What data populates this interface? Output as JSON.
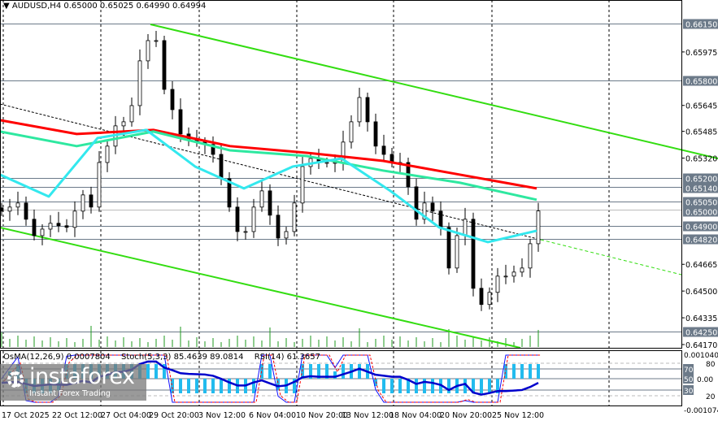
{
  "header": {
    "symbol": "AUDUSD,H4",
    "open": "0.65000",
    "high": "0.65025",
    "low": "0.64990",
    "close": "0.64994"
  },
  "indicators": {
    "osma": "OsMA(12,26,9) 0.0007804",
    "stoch": "Stoch(5,3,3) 85.4639 89.0814",
    "rsi": "RSI(14) 61.3657"
  },
  "watermark": {
    "brand": "instaforex",
    "tagline": "Instant Forex Trading"
  },
  "colors": {
    "ma_slow": "#ff0000",
    "ma_mid": "#2ee8a0",
    "ma_fast": "#33e8ee",
    "channel": "#33dd11",
    "volume": "#1c9a1c",
    "osma": "#22bbee",
    "stoch_main": "#1010ff",
    "stoch_signal": "#ff0000",
    "rsi": "#0000cc",
    "level_box": "#6c7a89"
  },
  "chart_data": {
    "type": "candlestick",
    "symbol": "AUDUSD",
    "timeframe": "H4",
    "ylim": [
      0.6417,
      0.6615
    ],
    "x_tick_labels": [
      "17 Oct 2025",
      "22 Oct 12:00",
      "27 Oct 04:00",
      "29 Oct 20:00",
      "3 Nov 12:00",
      "6 Nov 04:00",
      "10 Nov 20:00",
      "13 Nov 12:00",
      "18 Nov 04:00",
      "20 Nov 20:00",
      "25 Nov 12:00"
    ],
    "y_tick_labels": [
      "0.65975",
      "0.65645",
      "0.65485",
      "0.65320",
      "0.64665",
      "0.64500",
      "0.64335",
      "0.64170"
    ],
    "levels": [
      "0.66150",
      "0.65800",
      "0.65200",
      "0.65140",
      "0.65050",
      "0.65000",
      "0.64900",
      "0.64820",
      "0.64250"
    ],
    "closes": [
      0.64993,
      0.65018,
      0.65043,
      0.64943,
      0.64842,
      0.64882,
      0.64918,
      0.64903,
      0.64893,
      0.64993,
      0.65093,
      0.65018,
      0.65293,
      0.65394,
      0.65519,
      0.65544,
      0.65644,
      0.6592,
      0.66045,
      0.66045,
      0.65744,
      0.65619,
      0.65469,
      0.65434,
      0.65419,
      0.65404,
      0.65343,
      0.65193,
      0.65018,
      0.64867,
      0.64867,
      0.65018,
      0.65118,
      0.64968,
      0.64827,
      0.64867,
      0.65043,
      0.65268,
      0.65318,
      0.65293,
      0.65293,
      0.65293,
      0.65419,
      0.65544,
      0.65694,
      0.65544,
      0.65394,
      0.65343,
      0.65293,
      0.65293,
      0.65143,
      0.64943,
      0.65043,
      0.64993,
      0.64893,
      0.64642,
      0.64842,
      0.64943,
      0.64517,
      0.64417,
      0.64492,
      0.64592,
      0.64592,
      0.64617,
      0.64642,
      0.64792,
      0.64994
    ],
    "ma_slow": [
      0.65554,
      0.65469,
      0.65494,
      0.65394,
      0.65353,
      0.65303,
      0.65218,
      0.65133
    ],
    "ma_mid": [
      0.65484,
      0.65394,
      0.65484,
      0.65368,
      0.65333,
      0.65243,
      0.65168,
      0.65063
    ],
    "ma_fast": [
      0.65218,
      0.65083,
      0.65444,
      0.65494,
      0.65268,
      0.65133,
      0.65268,
      0.65318,
      0.65118,
      0.64893,
      0.64802,
      0.64872
    ],
    "indicator_scale": {
      "osma_max": "0.001040",
      "osma_min": "-0.001074",
      "levels": [
        "80",
        "70",
        "50",
        "30",
        "20"
      ],
      "zero": "0.00"
    }
  }
}
